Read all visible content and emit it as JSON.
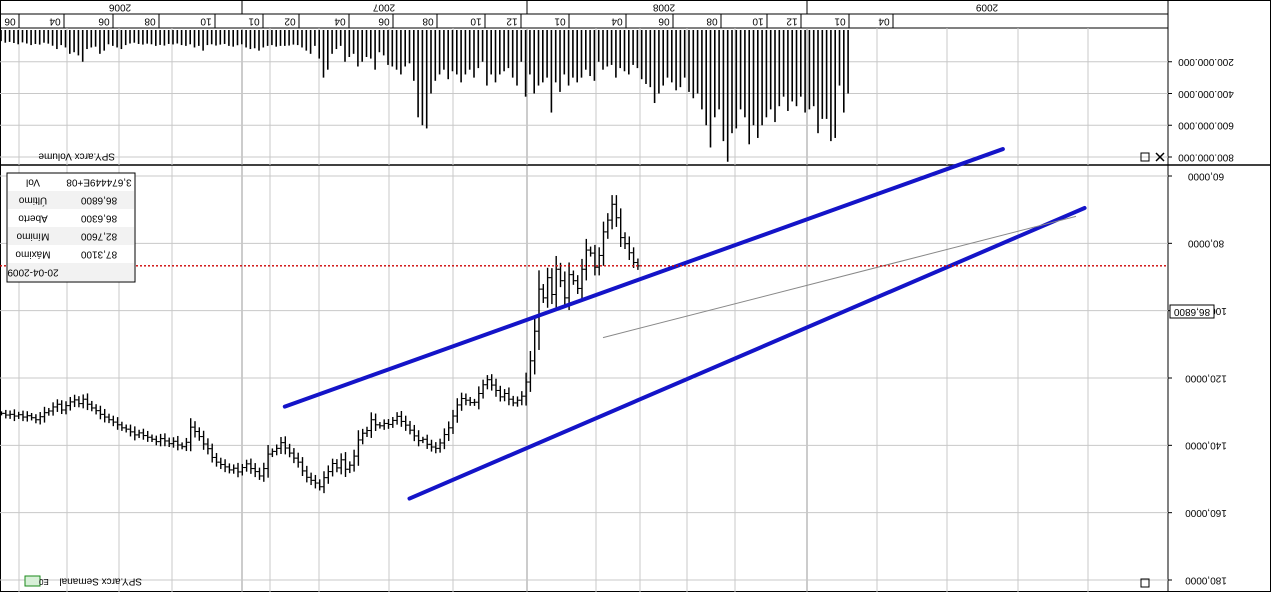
{
  "panels": {
    "volume_label": "SPY.arcx Volume",
    "price_label": "SPY.arcx Semanal",
    "price_badge": "E0"
  },
  "info_box": {
    "rows": [
      {
        "label": "Vol",
        "value": "3,674449E+08"
      },
      {
        "label": "Último",
        "value": "86,6800"
      },
      {
        "label": "Aberto",
        "value": "86,6300"
      },
      {
        "label": "Mínimo",
        "value": "82,7600"
      },
      {
        "label": "Máximo",
        "value": "87,3100"
      },
      {
        "label": "20-04-2009",
        "value": ""
      }
    ]
  },
  "last_price_label": "86,6800",
  "colors": {
    "channel": "#1414c8",
    "last_price_line": "#cc0000",
    "bars": "#000000",
    "grid": "#c8c8c8"
  },
  "chart_data": [
    {
      "type": "bar",
      "name": "volume",
      "ylabel": "",
      "y_ticks": [
        "200.000.000",
        "400.000.000",
        "600.000.000",
        "800.000.000"
      ],
      "y_tick_values": [
        200000000,
        400000000,
        600000000,
        800000000
      ],
      "ylim": [
        0,
        850000000
      ],
      "values": [
        70000000,
        80000000,
        75000000,
        82000000,
        90000000,
        78000000,
        85000000,
        95000000,
        88000000,
        92000000,
        80000000,
        86000000,
        99000000,
        120000000,
        95000000,
        110000000,
        150000000,
        140000000,
        160000000,
        200000000,
        120000000,
        110000000,
        105000000,
        150000000,
        130000000,
        90000000,
        100000000,
        110000000,
        120000000,
        95000000,
        85000000,
        80000000,
        88000000,
        92000000,
        86000000,
        90000000,
        100000000,
        94000000,
        98000000,
        88000000,
        91000000,
        85000000,
        95000000,
        100000000,
        90000000,
        110000000,
        100000000,
        130000000,
        95000000,
        90000000,
        98000000,
        92000000,
        88000000,
        100000000,
        105000000,
        96000000,
        90000000,
        110000000,
        120000000,
        115000000,
        130000000,
        110000000,
        100000000,
        95000000,
        105000000,
        100000000,
        100000000,
        98000000,
        92000000,
        95000000,
        110000000,
        130000000,
        150000000,
        100000000,
        180000000,
        300000000,
        250000000,
        150000000,
        120000000,
        100000000,
        200000000,
        170000000,
        150000000,
        230000000,
        200000000,
        170000000,
        180000000,
        250000000,
        140000000,
        160000000,
        220000000,
        230000000,
        250000000,
        280000000,
        230000000,
        210000000,
        320000000,
        550000000,
        600000000,
        620000000,
        400000000,
        320000000,
        280000000,
        250000000,
        310000000,
        260000000,
        280000000,
        330000000,
        280000000,
        250000000,
        300000000,
        240000000,
        200000000,
        350000000,
        280000000,
        330000000,
        280000000,
        260000000,
        240000000,
        300000000,
        350000000,
        200000000,
        420000000,
        280000000,
        400000000,
        350000000,
        330000000,
        300000000,
        520000000,
        330000000,
        390000000,
        280000000,
        350000000,
        300000000,
        330000000,
        300000000,
        250000000,
        290000000,
        320000000,
        200000000,
        250000000,
        230000000,
        220000000,
        300000000,
        240000000,
        260000000,
        280000000,
        220000000,
        240000000,
        310000000,
        340000000,
        360000000,
        460000000,
        400000000,
        350000000,
        300000000,
        330000000,
        380000000,
        360000000,
        300000000,
        390000000,
        430000000,
        400000000,
        500000000,
        600000000,
        740000000,
        550000000,
        500000000,
        700000000,
        830000000,
        650000000,
        620000000,
        500000000,
        550000000,
        720000000,
        600000000,
        680000000,
        600000000,
        550000000,
        500000000,
        580000000,
        480000000,
        420000000,
        510000000,
        450000000,
        480000000,
        420000000,
        520000000,
        500000000,
        480000000,
        650000000,
        560000000,
        560000000,
        700000000,
        680000000,
        350000000,
        520000000,
        400000000
      ]
    },
    {
      "type": "bar",
      "name": "price",
      "ylabel": "",
      "y_axis_inverted": true,
      "y_ticks": [
        "60,0000",
        "80,0000",
        "100,0000",
        "120,0000",
        "140,0000",
        "160,0000",
        "180,0000"
      ],
      "y_tick_values": [
        60,
        80,
        100,
        120,
        140,
        160,
        180
      ],
      "ylim": [
        60,
        180
      ],
      "closes": [
        130.5,
        131.0,
        130.8,
        131.3,
        130.9,
        131.6,
        131.2,
        131.8,
        132.4,
        131.5,
        130.3,
        129.8,
        128.6,
        127.8,
        129.5,
        128.2,
        127.1,
        126.5,
        127.6,
        126.3,
        127.8,
        128.9,
        129.7,
        130.8,
        131.6,
        132.4,
        133.1,
        133.9,
        134.8,
        135.2,
        136.0,
        136.9,
        136.3,
        137.1,
        137.6,
        138.2,
        138.9,
        138.0,
        138.7,
        139.5,
        138.8,
        139.9,
        140.4,
        139.1,
        134.6,
        135.9,
        137.4,
        139.6,
        141.0,
        143.6,
        145.0,
        145.7,
        146.4,
        147.3,
        146.8,
        147.9,
        146.6,
        145.5,
        146.9,
        147.8,
        149.1,
        146.9,
        142.6,
        141.8,
        140.9,
        139.2,
        140.8,
        142.3,
        143.8,
        145.0,
        147.6,
        149.5,
        150.4,
        151.2,
        152.3,
        149.6,
        147.8,
        145.4,
        146.7,
        144.3,
        147.1,
        145.9,
        143.2,
        138.4,
        136.4,
        135.6,
        132.4,
        133.9,
        134.2,
        133.5,
        133.8,
        132.6,
        131.4,
        132.9,
        134.0,
        135.5,
        137.2,
        138.6,
        138.2,
        139.7,
        140.5,
        140.9,
        139.3,
        136.8,
        134.8,
        131.3,
        128.0,
        126.1,
        126.6,
        127.3,
        127.2,
        124.6,
        122.0,
        120.5,
        122.1,
        123.7,
        125.6,
        124.6,
        126.3,
        127.4,
        126.6,
        125.4,
        121.2,
        114.9,
        106.1,
        93.6,
        96.2,
        90.2,
        95.2,
        87.7,
        91.1,
        96.2,
        89.3,
        91.1,
        93.4,
        87.7,
        82.0,
        82.9,
        87.1,
        83.6,
        76.6,
        73.1,
        68.4,
        72.4,
        78.3,
        80.1,
        82.8,
        85.7,
        86.7
      ],
      "annotations": [
        {
          "type": "channel_line",
          "from": {
            "t": 66,
            "price": 128.5
          },
          "to": {
            "t": 233,
            "price": 52.0
          }
        },
        {
          "type": "channel_line",
          "from": {
            "t": 95,
            "price": 155.8
          },
          "to": {
            "t": 252,
            "price": 69.5
          }
        },
        {
          "type": "trend_line",
          "from": {
            "t": 140,
            "price": 108.0
          },
          "to": {
            "t": 250,
            "price": 72.0
          }
        },
        {
          "type": "last_price_line",
          "price": 86.68
        }
      ],
      "time_axis": {
        "years": [
          "2006",
          "2007",
          "2008",
          "2009"
        ],
        "months": [
          "06",
          "04",
          "06",
          "08",
          "10",
          "01",
          "02",
          "04",
          "06",
          "08",
          "10",
          "12",
          "01",
          "04",
          "06",
          "08",
          "10",
          "12",
          "01",
          "04"
        ]
      }
    }
  ]
}
